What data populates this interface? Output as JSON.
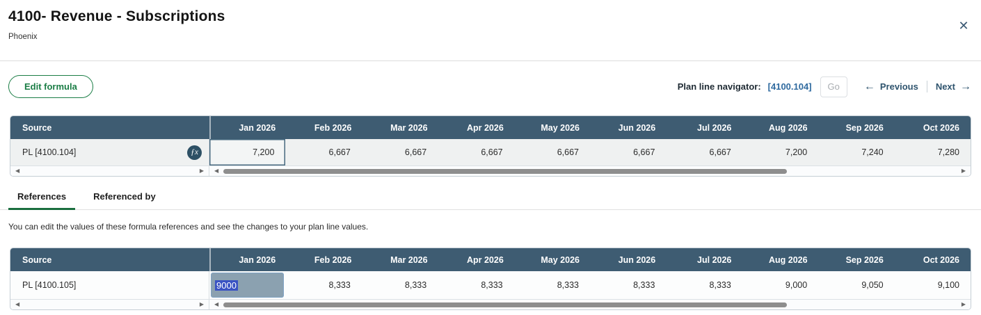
{
  "header": {
    "title": "4100- Revenue - Subscriptions",
    "subtitle": "Phoenix"
  },
  "toolbar": {
    "edit_formula": "Edit formula",
    "navigator_label": "Plan line navigator:",
    "navigator_value": "[4100.104]",
    "go": "Go",
    "previous": "Previous",
    "next": "Next"
  },
  "icons": {
    "close": "✕",
    "arrow_left": "←",
    "arrow_right": "→",
    "fx": "ƒx",
    "scroll_left": "◀",
    "scroll_right": "▶"
  },
  "months": [
    "Jan 2026",
    "Feb 2026",
    "Mar 2026",
    "Apr 2026",
    "May 2026",
    "Jun 2026",
    "Jul 2026",
    "Aug 2026",
    "Sep 2026",
    "Oct 2026"
  ],
  "source_header": "Source",
  "table1": {
    "source": "PL [4100.104]",
    "values": [
      "7,200",
      "6,667",
      "6,667",
      "6,667",
      "6,667",
      "6,667",
      "6,667",
      "7,200",
      "7,240",
      "7,280"
    ]
  },
  "tabs": {
    "references": "References",
    "referenced_by": "Referenced by"
  },
  "description": "You can edit the values of these formula references and see the changes to your plan line values.",
  "table2": {
    "source": "PL [4100.105]",
    "edit_value": "9000",
    "values": [
      "8,333",
      "8,333",
      "8,333",
      "8,333",
      "8,333",
      "8,333",
      "9,000",
      "9,050",
      "9,100"
    ]
  },
  "colors": {
    "table_header_bg": "#3e5c72",
    "accent_green": "#1a7d45",
    "tab_underline_green": "#1b6e3f",
    "link_blue": "#2f6a9f",
    "nav_link_blue": "#2f546e",
    "edit_cell_bg": "#8ba1b0",
    "text_selection_blue": "#3a53c3",
    "selected_cell_border": "#47697f"
  }
}
